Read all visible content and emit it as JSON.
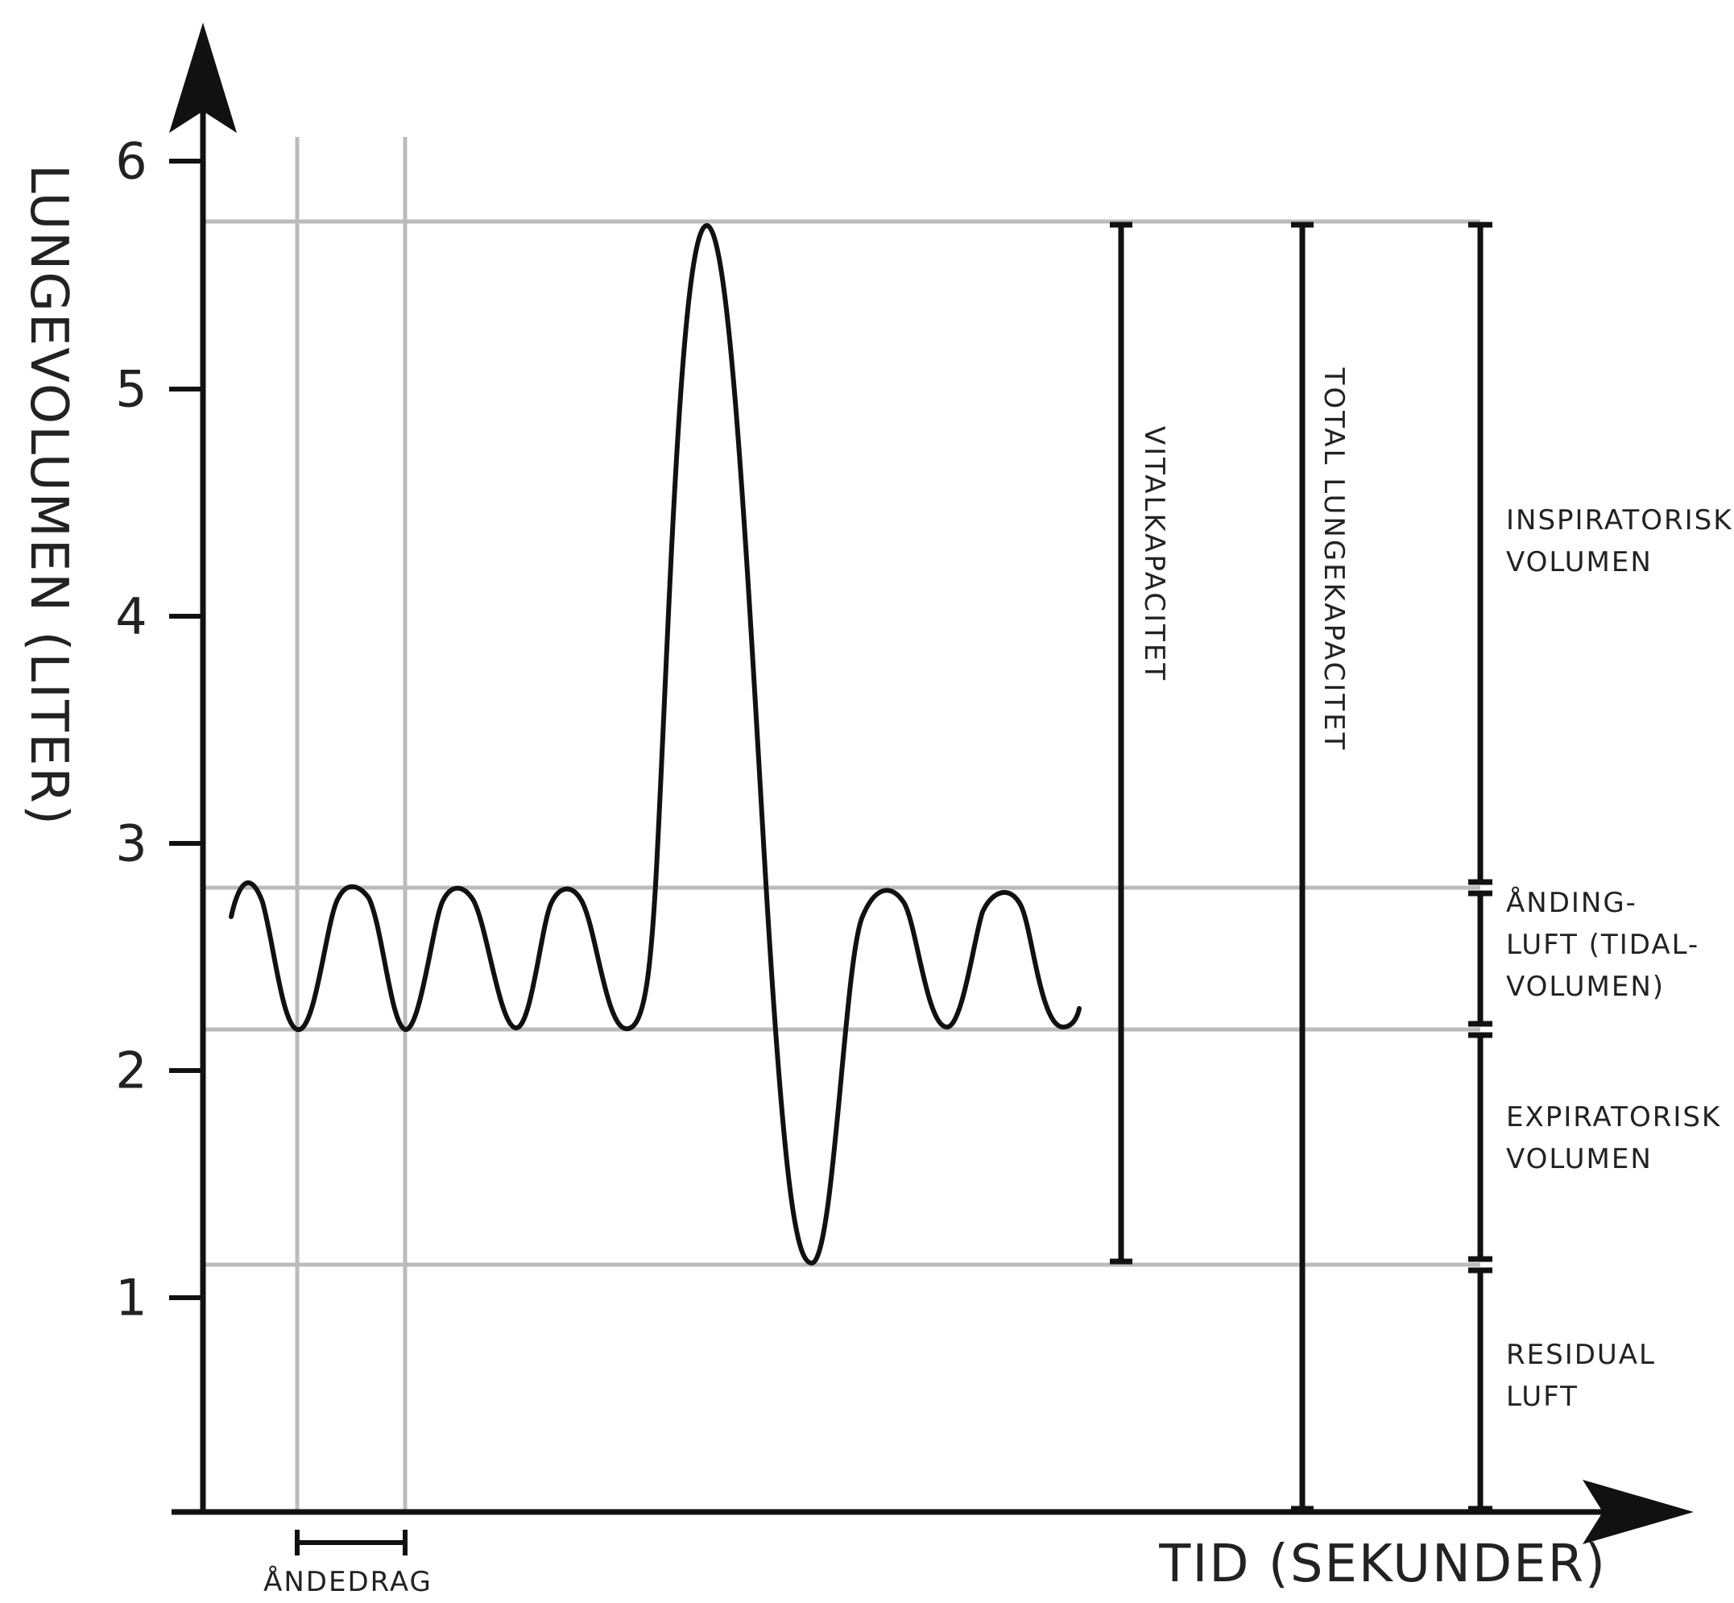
{
  "axes": {
    "y_title": "LUNGEVOLUMEN (LITER)",
    "x_title": "TID (SEKUNDER)",
    "y_ticks": [
      "1",
      "2",
      "3",
      "4",
      "5",
      "6"
    ],
    "breath_label": "ÅNDEDRAG"
  },
  "levels": {
    "total": 5.74,
    "tidal_top": 2.8,
    "tidal_bottom": 2.18,
    "residual": 1.12
  },
  "capacities": {
    "vital": "VITALKAPACITET",
    "total": "TOTAL LUNGEKAPACITET"
  },
  "volumes": {
    "inspiratory": [
      "INSPIRATORISK",
      "VOLUMEN"
    ],
    "tidal": [
      "ÅNDING-",
      "LUFT (TIDAL-",
      "VOLUMEN)"
    ],
    "expiratory": [
      "EXPIRATORISK",
      "VOLUMEN"
    ],
    "residual": [
      "RESIDUAL",
      "LUFT"
    ]
  },
  "colors": {
    "axis": "#111111",
    "grid": "#bbbbbb",
    "curve": "#111111"
  }
}
